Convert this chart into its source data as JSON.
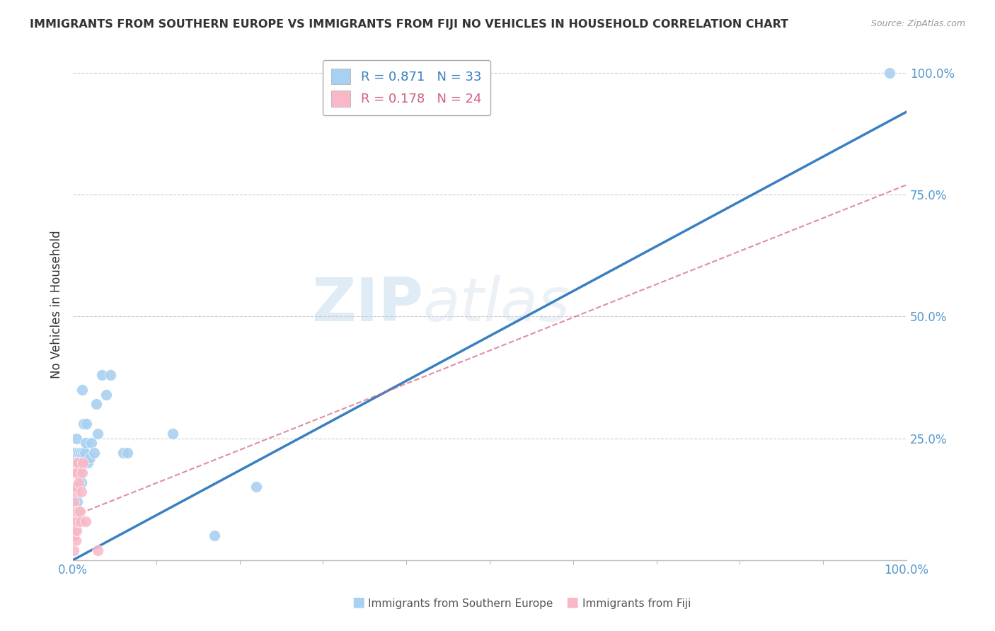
{
  "title": "IMMIGRANTS FROM SOUTHERN EUROPE VS IMMIGRANTS FROM FIJI NO VEHICLES IN HOUSEHOLD CORRELATION CHART",
  "source": "Source: ZipAtlas.com",
  "ylabel": "No Vehicles in Household",
  "legend_label_blue": "Immigrants from Southern Europe",
  "legend_label_pink": "Immigrants from Fiji",
  "R_blue": 0.871,
  "N_blue": 33,
  "R_pink": 0.178,
  "N_pink": 24,
  "blue_color": "#a8d0f0",
  "blue_line_color": "#3a7fc1",
  "pink_color": "#f8b8c8",
  "pink_line_color": "#d06080",
  "watermark_zip": "ZIP",
  "watermark_atlas": "atlas",
  "blue_scatter_x": [
    0.001,
    0.002,
    0.003,
    0.004,
    0.004,
    0.005,
    0.005,
    0.006,
    0.007,
    0.008,
    0.009,
    0.01,
    0.011,
    0.012,
    0.013,
    0.014,
    0.015,
    0.016,
    0.018,
    0.02,
    0.022,
    0.025,
    0.028,
    0.03,
    0.035,
    0.04,
    0.045,
    0.06,
    0.065,
    0.12,
    0.17,
    0.22,
    0.98
  ],
  "blue_scatter_y": [
    0.05,
    0.22,
    0.2,
    0.15,
    0.25,
    0.18,
    0.12,
    0.2,
    0.22,
    0.18,
    0.22,
    0.16,
    0.35,
    0.22,
    0.28,
    0.22,
    0.24,
    0.28,
    0.2,
    0.21,
    0.24,
    0.22,
    0.32,
    0.26,
    0.38,
    0.34,
    0.38,
    0.22,
    0.22,
    0.26,
    0.05,
    0.15,
    1.0
  ],
  "pink_scatter_x": [
    0.001,
    0.001,
    0.001,
    0.002,
    0.002,
    0.002,
    0.003,
    0.003,
    0.003,
    0.003,
    0.004,
    0.004,
    0.005,
    0.005,
    0.006,
    0.006,
    0.007,
    0.008,
    0.009,
    0.01,
    0.011,
    0.012,
    0.015,
    0.03
  ],
  "pink_scatter_y": [
    0.02,
    0.05,
    0.12,
    0.06,
    0.08,
    0.18,
    0.04,
    0.1,
    0.14,
    0.2,
    0.06,
    0.15,
    0.08,
    0.18,
    0.1,
    0.2,
    0.16,
    0.1,
    0.08,
    0.14,
    0.18,
    0.2,
    0.08,
    0.02
  ],
  "blue_line_x0": 0.0,
  "blue_line_y0": 0.0,
  "blue_line_x1": 1.0,
  "blue_line_y1": 0.92,
  "pink_line_x0": 0.0,
  "pink_line_y0": 0.09,
  "pink_line_x1": 1.0,
  "pink_line_y1": 0.77,
  "xlim": [
    0.0,
    1.0
  ],
  "ylim": [
    0.0,
    1.05
  ],
  "yticks": [
    0.25,
    0.5,
    0.75,
    1.0
  ],
  "xticks": [
    0.0,
    1.0
  ],
  "background_color": "#ffffff",
  "grid_color": "#cccccc",
  "tick_color": "#5599cc",
  "title_fontsize": 11.5,
  "source_fontsize": 9,
  "axis_fontsize": 12
}
